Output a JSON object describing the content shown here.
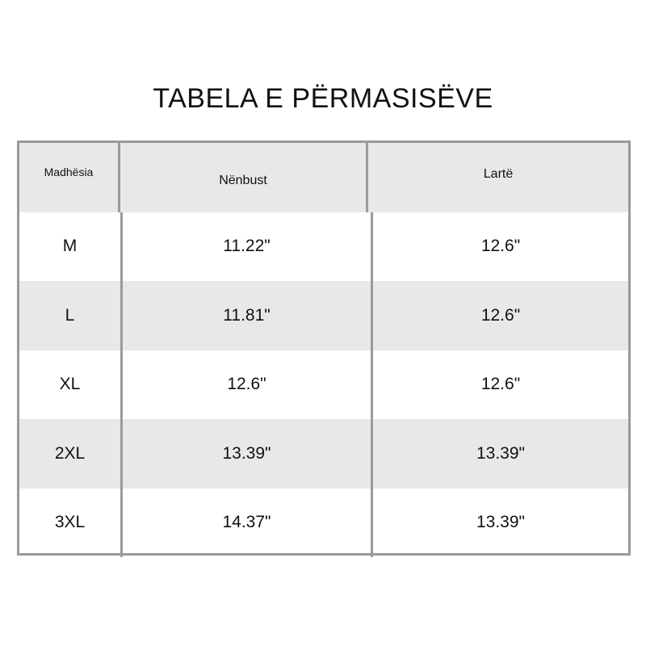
{
  "title": "TABELA E PËRMASISËVE",
  "headers": [
    "Madhësia",
    "Nënbust",
    "Lartë"
  ],
  "rows": [
    [
      "M",
      "11.22\"",
      "12.6\""
    ],
    [
      "L",
      "11.81\"",
      "12.6\""
    ],
    [
      "XL",
      "12.6\"",
      "12.6\""
    ],
    [
      "2XL",
      "13.39\"",
      "13.39\""
    ],
    [
      "3XL",
      "14.37\"",
      "13.39\""
    ]
  ]
}
